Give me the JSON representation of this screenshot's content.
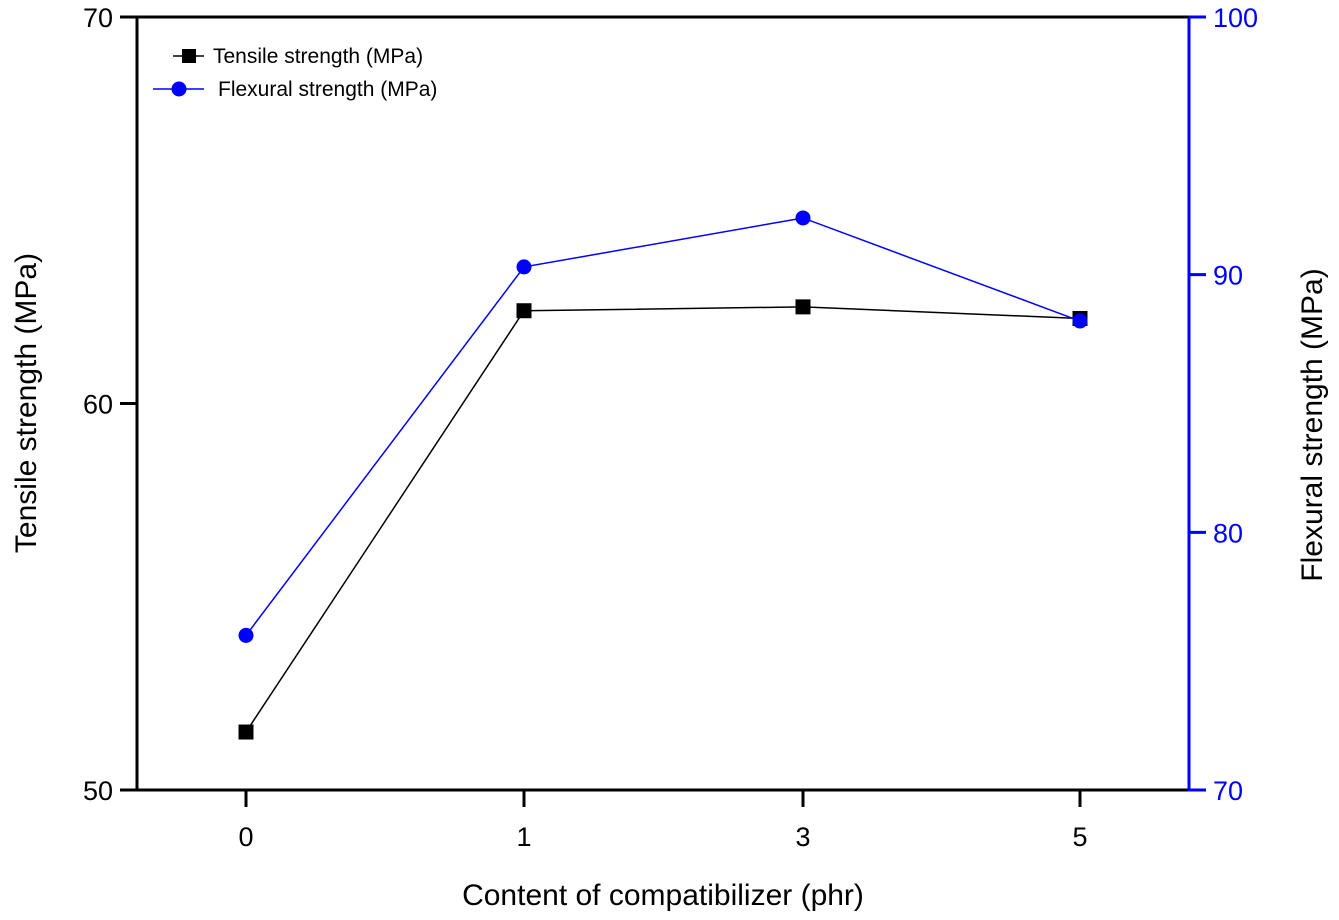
{
  "chart_data": {
    "type": "line",
    "title": "",
    "xlabel": "Content of compatibilizer (phr)",
    "ylabel": "Tensile strength (MPa)",
    "y2label": "Flexural strength (MPa)",
    "categories": [
      "0",
      "1",
      "3",
      "5"
    ],
    "ylim": [
      50,
      70
    ],
    "y2lim": [
      70,
      100
    ],
    "yticks": [
      50,
      60,
      70
    ],
    "y2ticks": [
      70,
      80,
      90,
      100
    ],
    "grid": false,
    "legend_position": "top-left",
    "series": [
      {
        "name": "Tensile strength (MPa)",
        "axis": "left",
        "color": "#000000",
        "marker": "square",
        "values": [
          51.5,
          62.4,
          62.5,
          62.2
        ]
      },
      {
        "name": "Flexural strength (MPa)",
        "axis": "right",
        "color": "#0000ff",
        "marker": "circle",
        "values": [
          76.0,
          90.3,
          92.2,
          88.2
        ]
      }
    ],
    "colors": {
      "left_axis": "#000000",
      "right_axis": "#0000ff"
    }
  }
}
